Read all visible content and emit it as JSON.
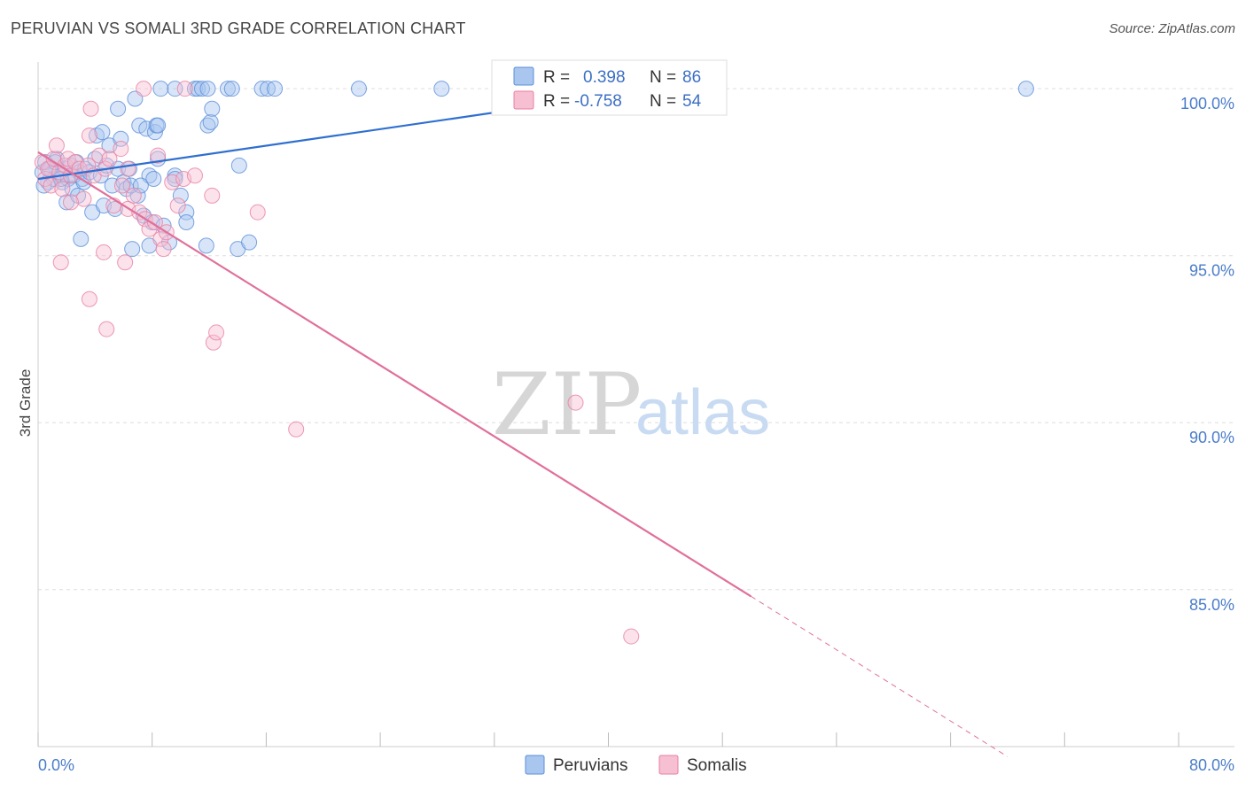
{
  "title": "PERUVIAN VS SOMALI 3RD GRADE CORRELATION CHART",
  "source": "Source: ZipAtlas.com",
  "watermark": {
    "zip": "ZIP",
    "atlas": "atlas"
  },
  "colors": {
    "blue": "#5b8fd9",
    "blue_fill": "#a9c6ef",
    "blue_line": "#2f6fd0",
    "pink": "#e87fa3",
    "pink_fill": "#f6bfd2",
    "pink_line": "#e0709a",
    "axis_text": "#4a7cc9",
    "grid": "#dddddd"
  },
  "legend": {
    "r_label": "R =",
    "n_label": "N =",
    "peruvians": {
      "r": "0.398",
      "n": "86"
    },
    "somalis": {
      "r": "-0.758",
      "n": "54"
    }
  },
  "chart_data": {
    "type": "scatter",
    "title": "PERUVIAN VS SOMALI 3RD GRADE CORRELATION CHART",
    "xlabel": "",
    "ylabel": "3rd Grade",
    "xlim": [
      0,
      80
    ],
    "ylim": [
      80.3,
      100.8
    ],
    "x_tick_labels": [
      "0.0%",
      "80.0%"
    ],
    "y_ticks": [
      100,
      95,
      90,
      85
    ],
    "y_tick_labels": [
      "100.0%",
      "95.0%",
      "90.0%",
      "85.0%"
    ],
    "series": [
      {
        "name": "Peruvians",
        "r": 0.398,
        "n": 86,
        "trend": {
          "x": [
            0,
            43.5
          ],
          "y": [
            97.3,
            100.0
          ],
          "dashed_to": null
        },
        "points": [
          [
            0.3,
            97.5
          ],
          [
            0.5,
            97.8
          ],
          [
            0.7,
            97.2
          ],
          [
            0.9,
            97.6
          ],
          [
            1.1,
            97.3
          ],
          [
            1.3,
            97.9
          ],
          [
            1.5,
            97.4
          ],
          [
            1.7,
            97.2
          ],
          [
            1.9,
            97.6
          ],
          [
            2.1,
            97.3
          ],
          [
            2.3,
            97.7
          ],
          [
            2.5,
            97.4
          ],
          [
            2.7,
            97.8
          ],
          [
            2.9,
            97.5
          ],
          [
            3.1,
            97.3
          ],
          [
            3.3,
            97.6
          ],
          [
            0.4,
            97.1
          ],
          [
            0.8,
            97.6
          ],
          [
            1.2,
            97.8
          ],
          [
            1.6,
            97.3
          ],
          [
            2.0,
            96.6
          ],
          [
            2.4,
            97.0
          ],
          [
            2.8,
            96.8
          ],
          [
            3.2,
            97.2
          ],
          [
            3.6,
            97.5
          ],
          [
            4.0,
            97.9
          ],
          [
            4.4,
            97.4
          ],
          [
            4.8,
            97.7
          ],
          [
            5.2,
            97.1
          ],
          [
            5.6,
            97.6
          ],
          [
            6.0,
            97.2
          ],
          [
            6.4,
            97.6
          ],
          [
            3.0,
            95.5
          ],
          [
            3.8,
            96.3
          ],
          [
            4.6,
            96.5
          ],
          [
            5.4,
            96.4
          ],
          [
            6.2,
            97.0
          ],
          [
            7.0,
            96.8
          ],
          [
            7.4,
            96.2
          ],
          [
            8.0,
            96.0
          ],
          [
            8.8,
            95.9
          ],
          [
            9.6,
            97.4
          ],
          [
            10.0,
            96.8
          ],
          [
            10.4,
            96.3
          ],
          [
            10.4,
            96.0
          ],
          [
            6.6,
            95.2
          ],
          [
            7.8,
            95.3
          ],
          [
            9.2,
            95.4
          ],
          [
            11.8,
            95.3
          ],
          [
            14.0,
            95.2
          ],
          [
            14.8,
            95.4
          ],
          [
            4.1,
            98.6
          ],
          [
            4.5,
            98.7
          ],
          [
            5.0,
            98.3
          ],
          [
            5.6,
            99.4
          ],
          [
            5.8,
            98.5
          ],
          [
            6.8,
            99.7
          ],
          [
            7.1,
            98.9
          ],
          [
            7.6,
            98.8
          ],
          [
            8.2,
            98.7
          ],
          [
            8.3,
            98.9
          ],
          [
            8.4,
            98.9
          ],
          [
            11.9,
            98.9
          ],
          [
            12.1,
            99.0
          ],
          [
            12.2,
            99.4
          ],
          [
            14.1,
            97.7
          ],
          [
            7.8,
            97.4
          ],
          [
            8.1,
            97.3
          ],
          [
            9.6,
            97.3
          ],
          [
            8.4,
            97.9
          ],
          [
            6.5,
            97.1
          ],
          [
            7.2,
            97.1
          ],
          [
            8.6,
            100.0
          ],
          [
            9.6,
            100.0
          ],
          [
            11.0,
            100.0
          ],
          [
            11.2,
            100.0
          ],
          [
            11.5,
            100.0
          ],
          [
            11.9,
            100.0
          ],
          [
            13.3,
            100.0
          ],
          [
            13.6,
            100.0
          ],
          [
            15.7,
            100.0
          ],
          [
            16.1,
            100.0
          ],
          [
            16.6,
            100.0
          ],
          [
            22.5,
            100.0
          ],
          [
            28.3,
            100.0
          ],
          [
            69.3,
            100.0
          ]
        ]
      },
      {
        "name": "Somalis",
        "r": -0.758,
        "n": 54,
        "trend": {
          "x": [
            0,
            50
          ],
          "y": [
            98.1,
            84.8
          ],
          "dashed_to": [
            68.0,
            80.0
          ]
        },
        "points": [
          [
            0.3,
            97.8
          ],
          [
            0.5,
            97.3
          ],
          [
            0.7,
            97.6
          ],
          [
            0.9,
            97.1
          ],
          [
            1.1,
            97.9
          ],
          [
            1.3,
            98.3
          ],
          [
            1.5,
            97.5
          ],
          [
            1.7,
            97.0
          ],
          [
            1.9,
            97.7
          ],
          [
            2.1,
            97.9
          ],
          [
            2.3,
            97.4
          ],
          [
            2.6,
            97.8
          ],
          [
            2.9,
            97.6
          ],
          [
            3.2,
            96.7
          ],
          [
            3.5,
            97.7
          ],
          [
            3.9,
            97.4
          ],
          [
            4.3,
            98.0
          ],
          [
            4.7,
            97.6
          ],
          [
            5.0,
            97.9
          ],
          [
            5.3,
            96.5
          ],
          [
            5.9,
            97.1
          ],
          [
            6.3,
            96.4
          ],
          [
            6.7,
            96.8
          ],
          [
            7.1,
            96.3
          ],
          [
            7.5,
            96.1
          ],
          [
            7.8,
            95.8
          ],
          [
            8.2,
            96.0
          ],
          [
            8.6,
            95.5
          ],
          [
            9.0,
            95.7
          ],
          [
            9.4,
            97.2
          ],
          [
            9.8,
            96.5
          ],
          [
            10.2,
            97.3
          ],
          [
            1.6,
            94.8
          ],
          [
            3.6,
            93.7
          ],
          [
            4.6,
            95.1
          ],
          [
            6.1,
            94.8
          ],
          [
            4.8,
            92.8
          ],
          [
            8.8,
            95.2
          ],
          [
            12.3,
            92.4
          ],
          [
            12.5,
            92.7
          ],
          [
            12.2,
            96.8
          ],
          [
            15.4,
            96.3
          ],
          [
            6.3,
            97.6
          ],
          [
            5.8,
            98.2
          ],
          [
            3.6,
            98.6
          ],
          [
            3.7,
            99.4
          ],
          [
            7.4,
            100.0
          ],
          [
            10.3,
            100.0
          ],
          [
            8.4,
            98.0
          ],
          [
            11.0,
            97.4
          ],
          [
            18.1,
            89.8
          ],
          [
            37.7,
            90.6
          ],
          [
            41.6,
            83.6
          ],
          [
            2.3,
            96.6
          ]
        ]
      }
    ],
    "legend": [
      "Peruvians",
      "Somalis"
    ]
  }
}
